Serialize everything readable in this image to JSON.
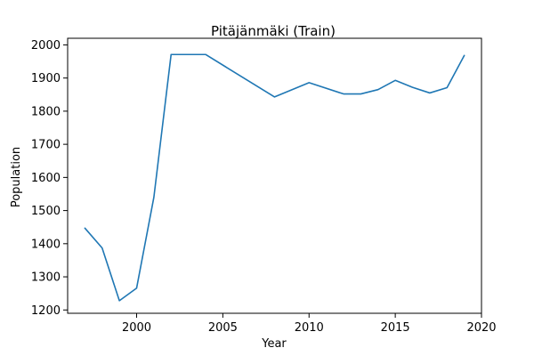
{
  "chart_data": {
    "type": "line",
    "title": "Pitäjänmäki (Train)",
    "xlabel": "Year",
    "ylabel": "Population",
    "xlim": [
      1996.0,
      2020.0
    ],
    "ylim": [
      1190,
      2020
    ],
    "x_ticks": [
      2000,
      2005,
      2010,
      2015,
      2020
    ],
    "y_ticks": [
      1200,
      1300,
      1400,
      1500,
      1600,
      1700,
      1800,
      1900,
      2000
    ],
    "grid": false,
    "legend": "none",
    "series": [
      {
        "color": "#1f77b4",
        "x": [
          1997,
          1998,
          1999,
          2000,
          2001,
          2002,
          2003,
          2004,
          2008,
          2010,
          2012,
          2013,
          2014,
          2015,
          2016,
          2017,
          2018,
          2019
        ],
        "y": [
          1447,
          1387,
          1228,
          1266,
          1540,
          1971,
          1971,
          1971,
          1843,
          1886,
          1852,
          1852,
          1865,
          1893,
          1872,
          1855,
          1871,
          1968
        ]
      }
    ]
  }
}
